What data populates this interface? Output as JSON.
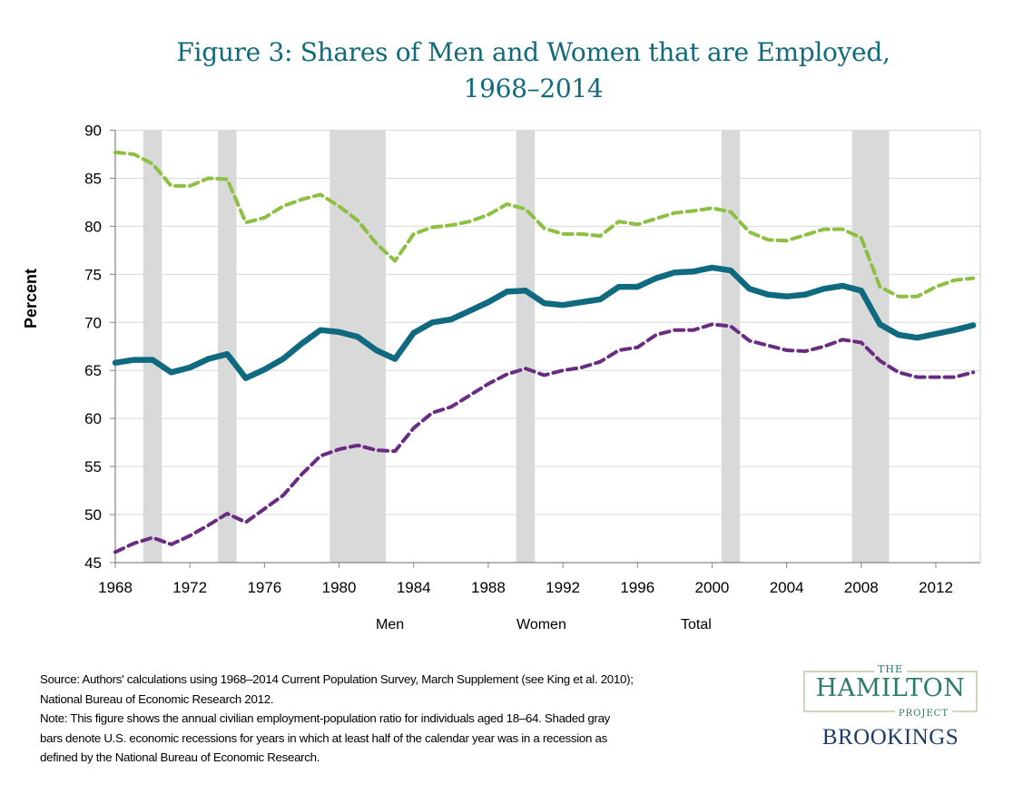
{
  "title": {
    "line1": "Figure 3: Shares of Men and Women that are Employed,",
    "line2": "1968–2014"
  },
  "colors": {
    "men": "#8cc043",
    "women": "#6a2c82",
    "total": "#0f6a80",
    "recession": "#d9d9d9",
    "grid": "#d9d9d9",
    "title": "#106a7c"
  },
  "chart_data": {
    "type": "line",
    "title": "Figure 3: Shares of Men and Women that are Employed, 1968–2014",
    "xlabel": "",
    "ylabel": "Percent",
    "ylim": [
      45,
      90
    ],
    "xlim": [
      1968,
      2014
    ],
    "yticks": [
      45,
      50,
      55,
      60,
      65,
      70,
      75,
      80,
      85,
      90
    ],
    "xticks": [
      1968,
      1972,
      1976,
      1980,
      1984,
      1988,
      1992,
      1996,
      2000,
      2004,
      2008,
      2012
    ],
    "grid": true,
    "legend_position": "bottom",
    "recessions": [
      [
        1969.5,
        1970.5
      ],
      [
        1973.5,
        1974.5
      ],
      [
        1979.5,
        1982.5
      ],
      [
        1989.5,
        1990.5
      ],
      [
        2000.5,
        2001.5
      ],
      [
        2007.5,
        2009.5
      ]
    ],
    "x": [
      1968,
      1969,
      1970,
      1971,
      1972,
      1973,
      1974,
      1975,
      1976,
      1977,
      1978,
      1979,
      1980,
      1981,
      1982,
      1983,
      1984,
      1985,
      1986,
      1987,
      1988,
      1989,
      1990,
      1991,
      1992,
      1993,
      1994,
      1995,
      1996,
      1997,
      1998,
      1999,
      2000,
      2001,
      2002,
      2003,
      2004,
      2005,
      2006,
      2007,
      2008,
      2009,
      2010,
      2011,
      2012,
      2013,
      2014
    ],
    "series": [
      {
        "name": "Men",
        "style": "dashed",
        "values": [
          87.7,
          87.5,
          86.5,
          84.2,
          84.2,
          85.0,
          84.9,
          80.4,
          80.9,
          82.1,
          82.8,
          83.3,
          82.1,
          80.6,
          78.2,
          76.4,
          79.2,
          79.9,
          80.1,
          80.5,
          81.2,
          82.3,
          81.8,
          79.8,
          79.2,
          79.2,
          79.0,
          80.5,
          80.2,
          80.8,
          81.4,
          81.6,
          81.9,
          81.5,
          79.4,
          78.6,
          78.5,
          79.1,
          79.7,
          79.7,
          78.8,
          73.7,
          72.7,
          72.7,
          73.7,
          74.4,
          74.6
        ]
      },
      {
        "name": "Women",
        "style": "dashed",
        "values": [
          46.1,
          47.0,
          47.6,
          46.9,
          47.8,
          48.9,
          50.1,
          49.2,
          50.6,
          52.0,
          54.2,
          56.1,
          56.8,
          57.2,
          56.7,
          56.6,
          59.0,
          60.6,
          61.2,
          62.4,
          63.6,
          64.6,
          65.2,
          64.5,
          65.0,
          65.3,
          65.9,
          67.1,
          67.4,
          68.7,
          69.2,
          69.2,
          69.8,
          69.6,
          68.1,
          67.6,
          67.1,
          67.0,
          67.5,
          68.2,
          67.9,
          66.0,
          64.8,
          64.3,
          64.3,
          64.3,
          64.8
        ]
      },
      {
        "name": "Total",
        "style": "solid",
        "values": [
          65.8,
          66.1,
          66.1,
          64.8,
          65.3,
          66.2,
          66.7,
          64.2,
          65.1,
          66.2,
          67.8,
          69.2,
          69.0,
          68.5,
          67.1,
          66.2,
          68.9,
          70.0,
          70.3,
          71.2,
          72.1,
          73.2,
          73.3,
          72.0,
          71.8,
          72.1,
          72.4,
          73.7,
          73.7,
          74.6,
          75.2,
          75.3,
          75.7,
          75.4,
          73.5,
          72.9,
          72.7,
          72.9,
          73.5,
          73.8,
          73.3,
          69.8,
          68.7,
          68.4,
          68.8,
          69.2,
          69.7
        ]
      }
    ]
  },
  "legend": {
    "men": "Men",
    "women": "Women",
    "total": "Total"
  },
  "footer": {
    "source_line1": "Source: Authors' calculations using 1968–2014 Current Population Survey, March Supplement (see  King et al. 2010);",
    "source_line2": "National Bureau of Economic Research 2012.",
    "note_line1": "Note: This figure shows the annual civilian employment-population ratio for individuals aged 18–64. Shaded gray",
    "note_line2": "bars denote U.S. economic recessions for years in which at least half of the calendar year was in a recession as",
    "note_line3": "defined by the National Bureau of Economic Research."
  },
  "logo": {
    "the": "THE",
    "hamilton": "HAMILTON",
    "project": "PROJECT",
    "brookings": "BROOKINGS"
  }
}
